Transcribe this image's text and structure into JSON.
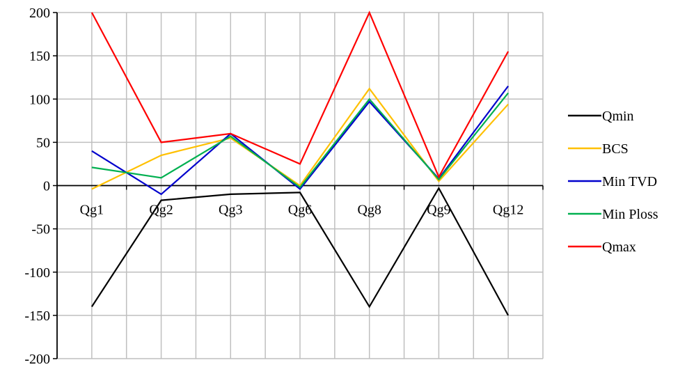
{
  "chart_data": {
    "type": "line",
    "categories": [
      "Qg1",
      "Qg2",
      "Qg3",
      "Qg6",
      "Qg8",
      "Qg9",
      "Qg12"
    ],
    "ylim": [
      -200,
      200
    ],
    "yticks": [
      200,
      150,
      100,
      50,
      0,
      -50,
      -100,
      -150,
      -200
    ],
    "grid": true,
    "legend_position": "right",
    "series": [
      {
        "name": "Qmin",
        "color": "#000000",
        "values": [
          -140,
          -17,
          -10,
          -8,
          -140,
          -3,
          -150
        ]
      },
      {
        "name": "BCS",
        "color": "#FFC000",
        "values": [
          -4,
          35,
          55,
          0,
          112,
          5,
          94
        ]
      },
      {
        "name": "Min TVD",
        "color": "#0000CC",
        "values": [
          40,
          -10,
          60,
          -4,
          97,
          8,
          115
        ]
      },
      {
        "name": "Min Ploss",
        "color": "#00B050",
        "values": [
          21,
          9,
          57,
          -2,
          100,
          7,
          107
        ]
      },
      {
        "name": "Qmax",
        "color": "#FF0000",
        "values": [
          200,
          50,
          60,
          25,
          200,
          10,
          155
        ]
      }
    ]
  }
}
